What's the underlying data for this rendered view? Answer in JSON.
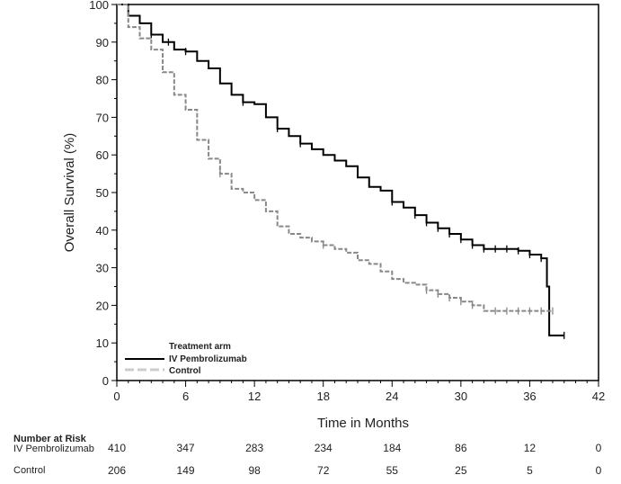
{
  "chart_data": {
    "type": "line",
    "subtype": "kaplan-meier",
    "xlabel": "Time in Months",
    "ylabel": "Overall Survival (%)",
    "xlim": [
      0,
      42
    ],
    "ylim": [
      0,
      100
    ],
    "xticks": [
      0,
      6,
      12,
      18,
      24,
      30,
      36,
      42
    ],
    "yticks": [
      0,
      10,
      20,
      30,
      40,
      50,
      60,
      70,
      80,
      90,
      100
    ],
    "grid": false,
    "legend": {
      "title": "Treatment arm",
      "placement": "bottom-left"
    },
    "series": [
      {
        "name": "IV Pembrolizumab",
        "color": "#000000",
        "style": "solid",
        "x": [
          0,
          1,
          2,
          3,
          4,
          5,
          6,
          7,
          8,
          9,
          10,
          11,
          12,
          13,
          14,
          15,
          16,
          17,
          18,
          19,
          20,
          21,
          22,
          23,
          24,
          25,
          26,
          27,
          28,
          29,
          30,
          31,
          32,
          33,
          34,
          35,
          36,
          37,
          37.5,
          37.7,
          39
        ],
        "y": [
          100,
          97,
          95,
          92,
          90,
          88,
          87.5,
          85,
          83,
          79,
          76,
          74,
          73.5,
          70,
          67,
          65,
          63,
          61.5,
          60,
          58.5,
          57,
          54,
          51.5,
          50.5,
          47.5,
          46,
          44,
          42,
          40.5,
          39,
          37.5,
          36,
          35,
          35,
          35,
          34.5,
          33.5,
          32.5,
          25,
          12,
          12
        ],
        "censor_x": [
          3,
          4.5,
          6,
          11,
          14,
          16,
          24,
          26,
          27,
          28,
          29,
          30,
          31,
          32,
          33,
          34,
          35,
          36,
          37,
          39
        ]
      },
      {
        "name": "Control",
        "color": "#888888",
        "style": "dashed",
        "x": [
          0,
          1,
          2,
          3,
          4,
          5,
          6,
          7,
          8,
          9,
          10,
          11,
          12,
          13,
          14,
          15,
          16,
          17,
          18,
          19,
          20,
          21,
          22,
          23,
          24,
          25,
          26,
          27,
          28,
          29,
          30,
          31,
          32,
          33,
          34,
          35,
          36,
          37,
          38
        ],
        "y": [
          100,
          94,
          91,
          88,
          82,
          76,
          72,
          64,
          59,
          55,
          51,
          50,
          48,
          45,
          41,
          39,
          38,
          37,
          36,
          35,
          34,
          32,
          31,
          29,
          27,
          26,
          25.5,
          24,
          23,
          22,
          21,
          20,
          18.5,
          18.5,
          18.5,
          18.5,
          18.5,
          18.5,
          18.5
        ],
        "censor_x": [
          9,
          18,
          27,
          28,
          29,
          30,
          31,
          33,
          34,
          35,
          36,
          37,
          38
        ]
      }
    ],
    "risk_table": {
      "title": "Number at Risk",
      "times": [
        0,
        6,
        12,
        18,
        24,
        30,
        36,
        42
      ],
      "rows": [
        {
          "label": "IV Pembrolizumab",
          "values": [
            "410",
            "347",
            "283",
            "234",
            "184",
            "86",
            "12",
            "0"
          ]
        },
        {
          "label": "Control",
          "values": [
            "206",
            "149",
            "98",
            "72",
            "55",
            "25",
            "5",
            "0"
          ]
        }
      ]
    }
  }
}
